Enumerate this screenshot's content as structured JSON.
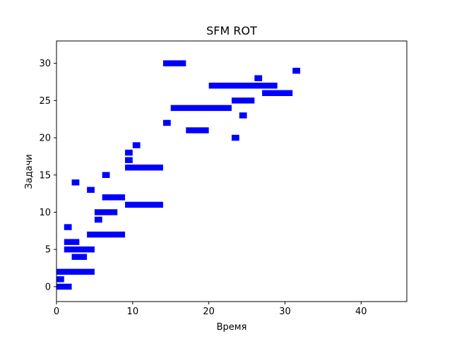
{
  "chart_data": {
    "type": "bar",
    "orientation": "horizontal-gantt",
    "title": "SFM ROT",
    "xlabel": "Время",
    "ylabel": "Задачи",
    "xlim": [
      0,
      46
    ],
    "ylim": [
      -2,
      33
    ],
    "xticks": [
      0,
      10,
      20,
      30,
      40
    ],
    "yticks": [
      0,
      5,
      10,
      15,
      20,
      25,
      30
    ],
    "grid": false,
    "bar_color": "#0000ff",
    "bars": [
      {
        "task": 0,
        "start": 0,
        "end": 2
      },
      {
        "task": 1,
        "start": 0,
        "end": 1
      },
      {
        "task": 2,
        "start": 0,
        "end": 5
      },
      {
        "task": 4,
        "start": 2,
        "end": 4
      },
      {
        "task": 5,
        "start": 1,
        "end": 5
      },
      {
        "task": 6,
        "start": 1,
        "end": 3
      },
      {
        "task": 7,
        "start": 4,
        "end": 9
      },
      {
        "task": 8,
        "start": 1,
        "end": 2
      },
      {
        "task": 9,
        "start": 5,
        "end": 6
      },
      {
        "task": 10,
        "start": 5,
        "end": 8
      },
      {
        "task": 11,
        "start": 9,
        "end": 14
      },
      {
        "task": 12,
        "start": 6,
        "end": 9
      },
      {
        "task": 13,
        "start": 4,
        "end": 5
      },
      {
        "task": 14,
        "start": 2,
        "end": 3
      },
      {
        "task": 15,
        "start": 6,
        "end": 7
      },
      {
        "task": 16,
        "start": 9,
        "end": 14
      },
      {
        "task": 17,
        "start": 9,
        "end": 10
      },
      {
        "task": 18,
        "start": 9,
        "end": 10
      },
      {
        "task": 19,
        "start": 10,
        "end": 11
      },
      {
        "task": 20,
        "start": 23,
        "end": 24
      },
      {
        "task": 21,
        "start": 17,
        "end": 20
      },
      {
        "task": 22,
        "start": 14,
        "end": 15
      },
      {
        "task": 23,
        "start": 24,
        "end": 25
      },
      {
        "task": 24,
        "start": 15,
        "end": 23
      },
      {
        "task": 25,
        "start": 23,
        "end": 26
      },
      {
        "task": 26,
        "start": 27,
        "end": 31
      },
      {
        "task": 27,
        "start": 20,
        "end": 29
      },
      {
        "task": 28,
        "start": 26,
        "end": 27
      },
      {
        "task": 29,
        "start": 31,
        "end": 32
      },
      {
        "task": 30,
        "start": 14,
        "end": 17
      }
    ]
  }
}
